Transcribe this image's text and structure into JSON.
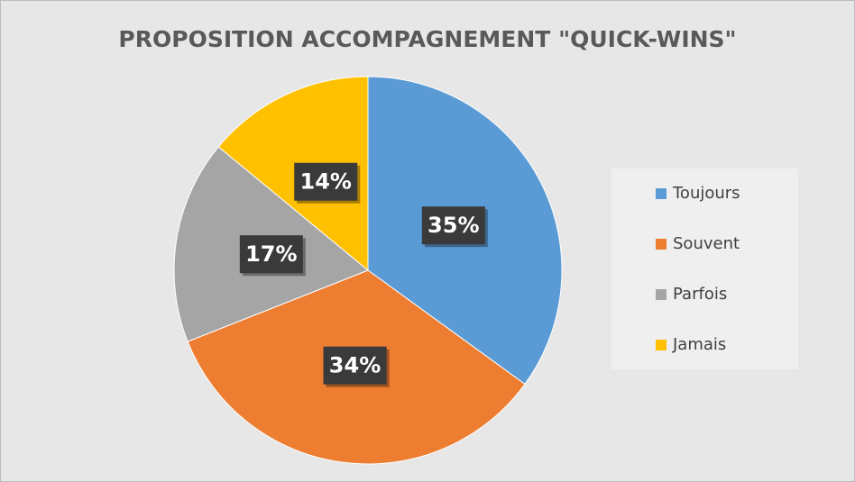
{
  "chart_data": {
    "type": "pie",
    "title": "PROPOSITION ACCOMPAGNEMENT \"QUICK-WINS\"",
    "categories": [
      "Toujours",
      "Souvent",
      "Parfois",
      "Jamais"
    ],
    "values": [
      35,
      34,
      17,
      14
    ],
    "value_labels": [
      "35%",
      "34%",
      "17%",
      "14%"
    ],
    "colors": [
      "#5b9bd5",
      "#ed7d31",
      "#a5a5a5",
      "#ffc000"
    ],
    "legend": "right"
  }
}
